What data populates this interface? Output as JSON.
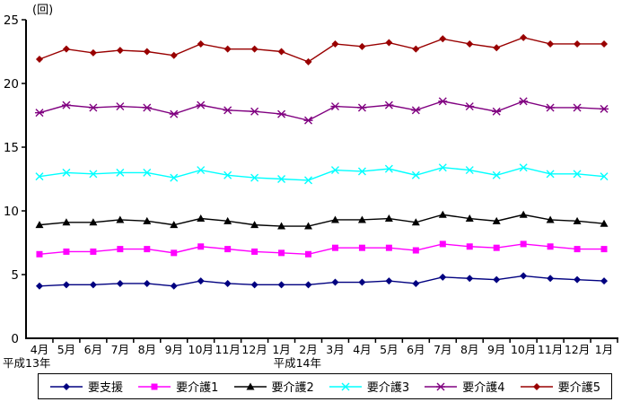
{
  "chart_data": {
    "type": "line",
    "title": "",
    "unit_label": "(回)",
    "xlabel": "",
    "ylabel": "(回)",
    "ylim": [
      0,
      25
    ],
    "yticks": [
      0,
      5,
      10,
      15,
      20,
      25
    ],
    "grid": false,
    "legend_position": "bottom",
    "categories": [
      "4月",
      "5月",
      "6月",
      "7月",
      "8月",
      "9月",
      "10月",
      "11月",
      "12月",
      "1月",
      "2月",
      "3月",
      "4月",
      "5月",
      "6月",
      "7月",
      "8月",
      "9月",
      "10月",
      "11月",
      "12月",
      "1月"
    ],
    "year_labels": [
      {
        "label": "平成13年",
        "index": 0
      },
      {
        "label": "平成14年",
        "index": 9
      }
    ],
    "series": [
      {
        "name": "要支援",
        "color": "#000080",
        "marker": "diamond",
        "values": [
          4.1,
          4.2,
          4.2,
          4.3,
          4.3,
          4.1,
          4.5,
          4.3,
          4.2,
          4.2,
          4.2,
          4.4,
          4.4,
          4.5,
          4.3,
          4.8,
          4.7,
          4.6,
          4.9,
          4.7,
          4.6,
          4.5
        ]
      },
      {
        "name": "要介護1",
        "color": "#FF00FF",
        "marker": "square",
        "values": [
          6.6,
          6.8,
          6.8,
          7.0,
          7.0,
          6.7,
          7.2,
          7.0,
          6.8,
          6.7,
          6.6,
          7.1,
          7.1,
          7.1,
          6.9,
          7.4,
          7.2,
          7.1,
          7.4,
          7.2,
          7.0,
          7.0
        ]
      },
      {
        "name": "要介護2",
        "color": "#000000",
        "marker": "triangle",
        "values": [
          8.9,
          9.1,
          9.1,
          9.3,
          9.2,
          8.9,
          9.4,
          9.2,
          8.9,
          8.8,
          8.8,
          9.3,
          9.3,
          9.4,
          9.1,
          9.7,
          9.4,
          9.2,
          9.7,
          9.3,
          9.2,
          9.0
        ]
      },
      {
        "name": "要介護3",
        "color": "#00FFFF",
        "marker": "x",
        "values": [
          12.7,
          13.0,
          12.9,
          13.0,
          13.0,
          12.6,
          13.2,
          12.8,
          12.6,
          12.5,
          12.4,
          13.2,
          13.1,
          13.3,
          12.8,
          13.4,
          13.2,
          12.8,
          13.4,
          12.9,
          12.9,
          12.7
        ]
      },
      {
        "name": "要介護4",
        "color": "#800080",
        "marker": "asterisk",
        "values": [
          17.7,
          18.3,
          18.1,
          18.2,
          18.1,
          17.6,
          18.3,
          17.9,
          17.8,
          17.6,
          17.1,
          18.2,
          18.1,
          18.3,
          17.9,
          18.6,
          18.2,
          17.8,
          18.6,
          18.1,
          18.1,
          18.0
        ]
      },
      {
        "name": "要介護5",
        "color": "#990000",
        "marker": "diamond",
        "values": [
          21.9,
          22.7,
          22.4,
          22.6,
          22.5,
          22.2,
          23.1,
          22.7,
          22.7,
          22.5,
          21.7,
          23.1,
          22.9,
          23.2,
          22.7,
          23.5,
          23.1,
          22.8,
          23.6,
          23.1,
          23.1,
          23.1
        ]
      }
    ]
  }
}
